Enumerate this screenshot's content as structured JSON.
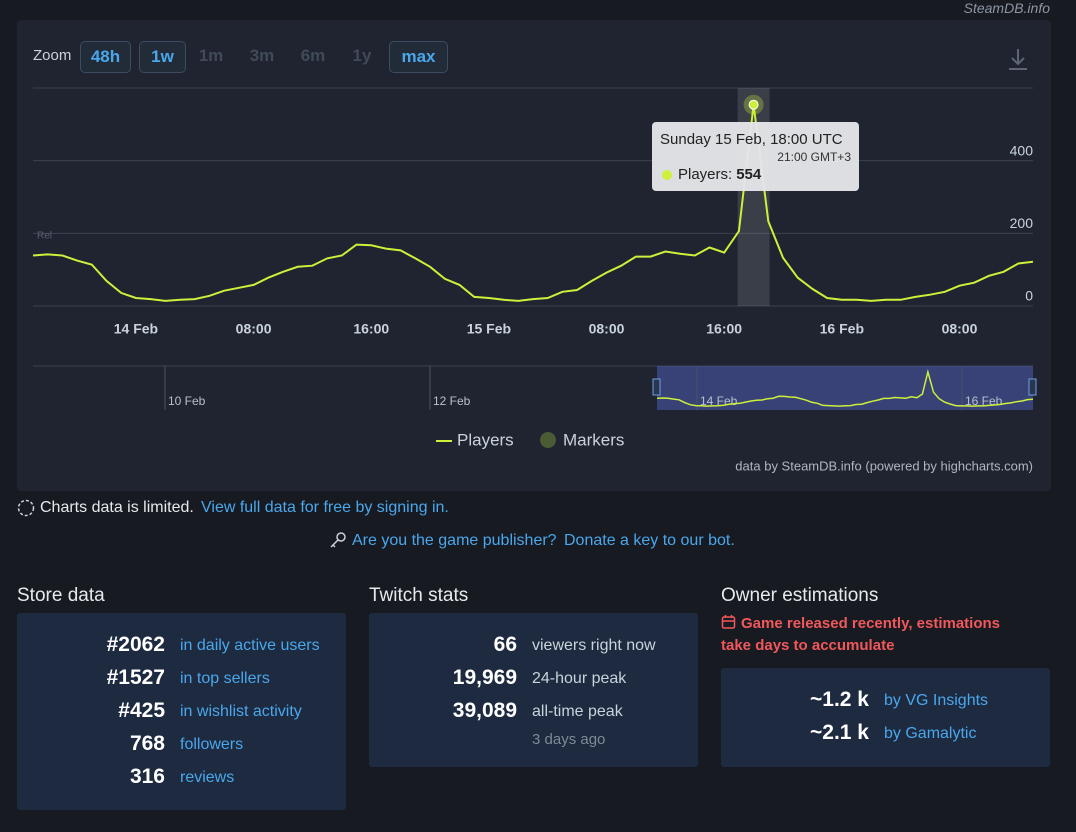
{
  "watermark": "SteamDB.info",
  "zoom": {
    "label": "Zoom",
    "buttons": [
      "48h",
      "1w",
      "1m",
      "3m",
      "6m",
      "1y",
      "max"
    ]
  },
  "chart_data": {
    "type": "line",
    "categories": [
      null,
      null,
      null,
      null,
      null,
      null,
      null,
      "14 Feb",
      null,
      null,
      null,
      null,
      null,
      null,
      null,
      "08:00",
      null,
      null,
      null,
      null,
      null,
      null,
      null,
      "16:00",
      null,
      null,
      null,
      null,
      null,
      null,
      null,
      "15 Feb",
      null,
      null,
      null,
      null,
      null,
      null,
      null,
      "08:00",
      null,
      null,
      null,
      null,
      null,
      null,
      null,
      "16:00",
      null,
      null,
      null,
      null,
      null,
      null,
      null,
      "16 Feb",
      null,
      null,
      null,
      null,
      null,
      null,
      null,
      "08:00",
      null,
      null,
      null,
      null,
      null
    ],
    "series": [
      {
        "name": "Players",
        "color": "#cdf03a",
        "values": [
          139,
          142,
          139,
          125,
          114,
          69,
          36,
          22,
          19,
          14,
          17,
          19,
          28,
          42,
          50,
          58,
          78,
          94,
          108,
          111,
          131,
          139,
          169,
          167,
          158,
          153,
          131,
          108,
          75,
          58,
          25,
          22,
          17,
          14,
          19,
          22,
          39,
          44,
          69,
          92,
          111,
          136,
          136,
          150,
          144,
          139,
          161,
          147,
          206,
          554,
          233,
          133,
          78,
          47,
          22,
          17,
          17,
          14,
          17,
          17,
          25,
          31,
          39,
          56,
          64,
          83,
          94,
          117,
          122
        ]
      }
    ],
    "markers": {
      "name": "Markers",
      "color": "#4b5b34"
    },
    "marker_label": "Rel",
    "ylim": [
      0,
      600
    ],
    "yticks": [
      0,
      200,
      400
    ],
    "grid": true,
    "tooltip": {
      "title": "Sunday 15 Feb, 18:00 UTC",
      "subtitle": "21:00 GMT+3",
      "label": "Players:"
    },
    "navigator_labels": [
      "10 Feb",
      "12 Feb",
      "14 Feb",
      "16 Feb"
    ],
    "credit": "data by SteamDB.info (powered by highcharts.com)"
  },
  "notices": {
    "limited": "Charts data is limited.",
    "limited_link": "View full data for free by signing in.",
    "publisher": "Are you the game publisher?",
    "publisher_link": "Donate a key to our bot."
  },
  "store": {
    "title": "Store data",
    "rows": [
      {
        "value": "#2062",
        "label": "in daily active users"
      },
      {
        "value": "#1527",
        "label": "in top sellers"
      },
      {
        "value": "#425",
        "label": "in wishlist activity"
      },
      {
        "value": "768",
        "label": "followers"
      },
      {
        "value": "316",
        "label": "reviews"
      }
    ]
  },
  "twitch": {
    "title": "Twitch stats",
    "rows": [
      {
        "value": "66",
        "label": "viewers right now"
      },
      {
        "value": "19,969",
        "label": "24-hour peak"
      },
      {
        "value": "39,089",
        "label": "all-time peak"
      }
    ],
    "note": "3 days ago"
  },
  "owners": {
    "title": "Owner estimations",
    "warning": [
      "Game released recently, estimations",
      "take days to accumulate"
    ],
    "rows": [
      {
        "value": "~1.2 k",
        "label": "by VG Insights"
      },
      {
        "value": "~2.1 k",
        "label": "by Gamalytic"
      }
    ]
  }
}
